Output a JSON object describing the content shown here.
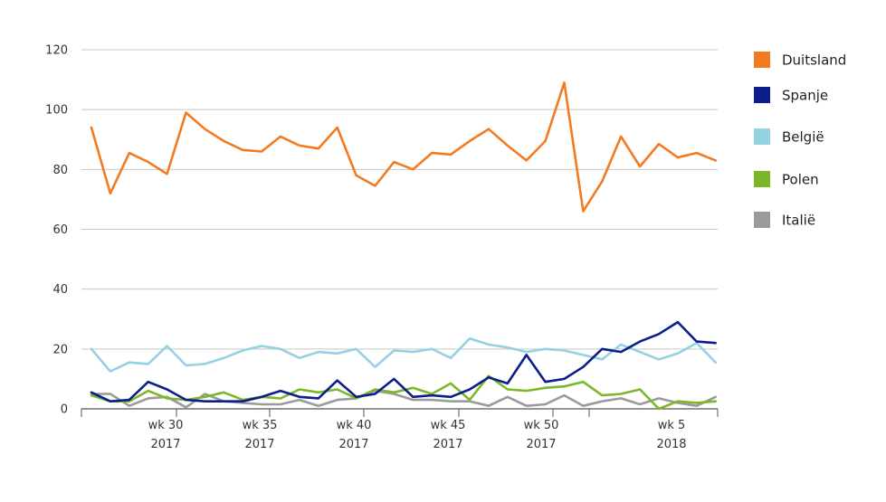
{
  "chart_data": {
    "type": "line",
    "title": "",
    "xlabel": "",
    "ylabel": "",
    "ylim": [
      0,
      120
    ],
    "yticks": [
      0,
      20,
      40,
      60,
      80,
      100,
      120
    ],
    "grid": true,
    "legend_position": "right",
    "x_tick_labels": [
      {
        "line1": "wk 30",
        "line2": "2017"
      },
      {
        "line1": "wk 35",
        "line2": "2017"
      },
      {
        "line1": "wk 40",
        "line2": "2017"
      },
      {
        "line1": "wk 45",
        "line2": "2017"
      },
      {
        "line1": "wk 50",
        "line2": "2017"
      },
      {
        "line1": "wk 5",
        "line2": "2018"
      }
    ],
    "series": [
      {
        "name": "Duitsland",
        "color": "#f47a20",
        "values": [
          94,
          72,
          85.5,
          82.5,
          78.5,
          99,
          93.5,
          89.5,
          86.5,
          86,
          91,
          88,
          87,
          94,
          78,
          74.5,
          82.5,
          80,
          85.5,
          85,
          89.5,
          93.5,
          88,
          83,
          89.5,
          109,
          66,
          76,
          91,
          81,
          88.5,
          84,
          85.5,
          83
        ]
      },
      {
        "name": "Spanje",
        "color": "#0b1e8c",
        "values": [
          5.5,
          2.5,
          3,
          9,
          6.5,
          3,
          2.5,
          2.5,
          2.5,
          4,
          6,
          4,
          3.5,
          9.5,
          4,
          5,
          10,
          4,
          4.5,
          4,
          6.5,
          10.5,
          8.5,
          18,
          9,
          10,
          14,
          20,
          19,
          22.5,
          25,
          29,
          22.5,
          22
        ]
      },
      {
        "name": "België",
        "color": "#94d1e3",
        "values": [
          20,
          12.5,
          15.5,
          15,
          21,
          14.5,
          15,
          17,
          19.5,
          21,
          20,
          17,
          19,
          18.5,
          20,
          14,
          19.5,
          19,
          20,
          17,
          23.5,
          21.5,
          20.5,
          19,
          20,
          19.5,
          18,
          16.5,
          21.5,
          19,
          16.5,
          18.5,
          22,
          15.5
        ]
      },
      {
        "name": "Polen",
        "color": "#7ab82a",
        "values": [
          4.5,
          2.5,
          2.5,
          6,
          3.5,
          3,
          4,
          5.5,
          3,
          4,
          3.5,
          6.5,
          5.5,
          6.5,
          3.5,
          6.5,
          5.5,
          7,
          5,
          8.5,
          3,
          11,
          6.5,
          6,
          7,
          7.5,
          9,
          4.5,
          5,
          6.5,
          0,
          2.5,
          2,
          2.5
        ]
      },
      {
        "name": "Italië",
        "color": "#9b9b9b",
        "values": [
          5,
          5,
          1,
          3.5,
          4,
          0.5,
          5,
          2.5,
          2,
          1.5,
          1.5,
          3,
          1,
          3,
          3.5,
          6,
          5,
          3,
          3,
          2.5,
          2.5,
          1,
          4,
          1,
          1.5,
          4.5,
          1,
          2.5,
          3.5,
          1.5,
          3.5,
          2,
          1,
          4
        ]
      }
    ]
  }
}
